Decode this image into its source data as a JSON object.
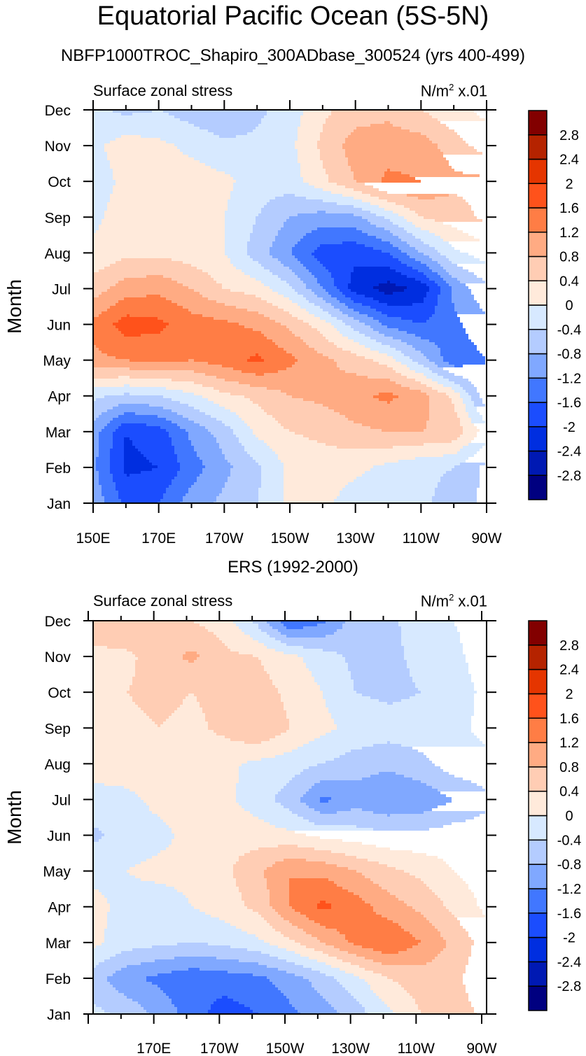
{
  "title": "Equatorial Pacific Ocean (5S-5N)",
  "chart_data": [
    {
      "type": "heatmap",
      "subtype": "filled-contour",
      "title": "NBFP1000TROC_Shapiro_300ADbase_300524 (yrs 400-499)",
      "left_label": "Surface zonal stress",
      "right_label": "N/m",
      "right_label_sup": "2",
      "right_label_suffix": " x.01",
      "xlabel": "",
      "ylabel": "Month",
      "x_ticks": [
        150,
        170,
        190,
        210,
        230,
        250,
        270
      ],
      "x_tick_labels": [
        "150E",
        "170E",
        "170W",
        "150W",
        "130W",
        "110W",
        "90W"
      ],
      "xlim": [
        150,
        270
      ],
      "y_ticks": [
        1,
        2,
        3,
        4,
        5,
        6,
        7,
        8,
        9,
        10,
        11,
        12
      ],
      "y_tick_labels": [
        "Jan",
        "Feb",
        "Mar",
        "Apr",
        "May",
        "Jun",
        "Jul",
        "Aug",
        "Sep",
        "Oct",
        "Nov",
        "Dec"
      ],
      "ylim": [
        1,
        12
      ],
      "x": [
        150,
        160,
        170,
        180,
        190,
        200,
        210,
        220,
        230,
        240,
        250,
        260,
        270
      ],
      "y": [
        1,
        2,
        3,
        4,
        5,
        6,
        7,
        8,
        9,
        10,
        11,
        12
      ],
      "z": [
        [
          -0.9,
          -1.7,
          -1.6,
          -1.0,
          -0.7,
          -0.4,
          0.1,
          0.1,
          -0.2,
          -0.3,
          -0.3,
          -0.6,
          -0.9
        ],
        [
          -1.1,
          -2.1,
          -2.0,
          -1.4,
          -0.9,
          -0.5,
          0.1,
          0.2,
          0.1,
          -0.1,
          -0.3,
          -0.4,
          -0.9
        ],
        [
          -1.0,
          -2.0,
          -1.8,
          -1.1,
          -0.6,
          0.1,
          0.4,
          0.5,
          0.7,
          0.8,
          0.8,
          0.7,
          -0.2
        ],
        [
          -0.3,
          -0.5,
          -0.4,
          -0.1,
          0.3,
          0.5,
          0.8,
          0.9,
          1.1,
          1.3,
          1.0,
          0.3,
          -1.1
        ],
        [
          1.1,
          1.2,
          1.3,
          1.2,
          1.4,
          1.7,
          1.3,
          0.9,
          0.6,
          0.2,
          -0.6,
          -1.5,
          -1.2
        ],
        [
          1.3,
          1.8,
          1.7,
          1.4,
          1.3,
          1.1,
          0.7,
          0.2,
          -0.6,
          -1.3,
          -1.6,
          -1.3,
          -0.9
        ],
        [
          0.6,
          1.0,
          1.1,
          0.8,
          0.4,
          0.2,
          -0.3,
          -1.2,
          -2.2,
          -2.6,
          -2.3,
          -1.1,
          -0.5
        ],
        [
          0.1,
          0.3,
          0.3,
          0.2,
          0.0,
          -0.6,
          -1.2,
          -1.8,
          -1.9,
          -1.6,
          -0.8,
          -0.1,
          0.2
        ],
        [
          -0.1,
          0.2,
          0.3,
          0.2,
          0.0,
          -0.4,
          -0.8,
          -1.0,
          -0.9,
          -0.3,
          0.4,
          0.6,
          0.9
        ],
        [
          -0.2,
          0.1,
          0.2,
          0.2,
          0.1,
          -0.2,
          -0.2,
          0.3,
          0.8,
          1.3,
          1.2,
          0.9,
          0.9
        ],
        [
          -0.1,
          0.2,
          0.1,
          -0.1,
          -0.3,
          -0.3,
          -0.1,
          0.5,
          1.0,
          1.0,
          1.0,
          0.6,
          0.2
        ],
        [
          -0.3,
          -0.5,
          -0.4,
          -0.6,
          -0.8,
          -0.5,
          -0.2,
          0.3,
          0.6,
          0.7,
          0.4,
          0.1,
          -0.1
        ]
      ]
    },
    {
      "type": "heatmap",
      "subtype": "filled-contour",
      "title": "ERS (1992-2000)",
      "left_label": "Surface zonal stress",
      "right_label": "N/m",
      "right_label_sup": "2",
      "right_label_suffix": " x.01",
      "xlabel": "",
      "ylabel": "Month",
      "x_ticks": [
        170,
        190,
        210,
        230,
        250,
        270
      ],
      "x_tick_labels": [
        "170E",
        "170W",
        "150W",
        "130W",
        "110W",
        "90W"
      ],
      "xlim": [
        150,
        270
      ],
      "y_ticks": [
        1,
        2,
        3,
        4,
        5,
        6,
        7,
        8,
        9,
        10,
        11,
        12
      ],
      "y_tick_labels": [
        "Jan",
        "Feb",
        "Mar",
        "Apr",
        "May",
        "Jun",
        "Jul",
        "Aug",
        "Sep",
        "Oct",
        "Nov",
        "Dec"
      ],
      "ylim": [
        1,
        12
      ],
      "x": [
        150,
        160,
        170,
        180,
        190,
        200,
        210,
        220,
        230,
        240,
        250,
        260,
        270
      ],
      "y": [
        1,
        2,
        3,
        4,
        5,
        6,
        7,
        8,
        9,
        10,
        11,
        12
      ],
      "z": [
        [
          -0.3,
          -0.5,
          -0.9,
          -1.4,
          -1.8,
          -1.6,
          -1.3,
          -1.0,
          -0.6,
          -0.1,
          0.4,
          0.6,
          0.3
        ],
        [
          -0.6,
          -1.1,
          -1.3,
          -1.5,
          -1.4,
          -1.3,
          -1.0,
          -0.6,
          -0.1,
          0.4,
          0.6,
          0.5,
          0.1
        ],
        [
          0.1,
          -0.2,
          -0.3,
          -0.4,
          -0.3,
          -0.1,
          0.3,
          0.8,
          1.3,
          1.6,
          1.2,
          0.7,
          0.2
        ],
        [
          0.1,
          -0.1,
          -0.2,
          0.0,
          0.2,
          0.5,
          1.2,
          1.7,
          1.4,
          1.0,
          0.7,
          0.3,
          -0.1
        ],
        [
          -0.1,
          0.0,
          0.1,
          0.1,
          0.3,
          0.7,
          1.2,
          1.1,
          0.8,
          0.5,
          0.3,
          0.0,
          -0.2
        ],
        [
          -0.5,
          -0.2,
          -0.1,
          0.1,
          0.3,
          0.2,
          0.1,
          -0.1,
          -0.2,
          -0.3,
          -0.3,
          -0.2,
          -0.2
        ],
        [
          -0.1,
          -0.1,
          0.1,
          0.2,
          0.1,
          -0.2,
          -0.6,
          -1.3,
          -1.0,
          -1.2,
          -1.1,
          -0.8,
          -0.5
        ],
        [
          0.1,
          0.2,
          0.3,
          0.2,
          0.1,
          -0.1,
          -0.2,
          -0.4,
          -0.6,
          -0.7,
          -0.5,
          -0.2,
          -0.1
        ],
        [
          0.2,
          0.3,
          0.4,
          0.3,
          0.5,
          0.8,
          0.4,
          0.1,
          -0.1,
          -0.2,
          -0.2,
          -0.1,
          0.1
        ],
        [
          0.3,
          0.4,
          0.5,
          0.4,
          0.5,
          0.6,
          0.3,
          0.0,
          -0.4,
          -0.5,
          -0.4,
          -0.2,
          0.1
        ],
        [
          0.3,
          0.3,
          0.6,
          0.9,
          0.5,
          0.4,
          0.1,
          -0.2,
          -0.5,
          -0.5,
          -0.3,
          -0.1,
          0.2
        ],
        [
          0.6,
          0.8,
          0.5,
          0.4,
          0.2,
          -0.5,
          -1.6,
          -1.3,
          -0.6,
          -0.5,
          -0.2,
          0.0,
          0.2
        ]
      ]
    }
  ],
  "colorbar": {
    "levels": [
      -2.8,
      -2.4,
      -2.0,
      -1.6,
      -1.2,
      -0.8,
      -0.4,
      0,
      0.4,
      0.8,
      1.2,
      1.6,
      2.0,
      2.4,
      2.8
    ],
    "labels": [
      "-2.8",
      "-2.4",
      "-2",
      "-1.6",
      "-1.2",
      "-0.8",
      "-0.4",
      "0",
      "0.4",
      "0.8",
      "1.2",
      "1.6",
      "2",
      "2.4",
      "2.8"
    ],
    "colors": [
      "#000080",
      "#0019b3",
      "#002ee0",
      "#1b4dfe",
      "#4177ff",
      "#80a8ff",
      "#b4ccff",
      "#d7e9ff",
      "#ffeadb",
      "#ffcdb4",
      "#ffab83",
      "#ff7d45",
      "#ff521b",
      "#e53500",
      "#b52300",
      "#820000"
    ]
  }
}
